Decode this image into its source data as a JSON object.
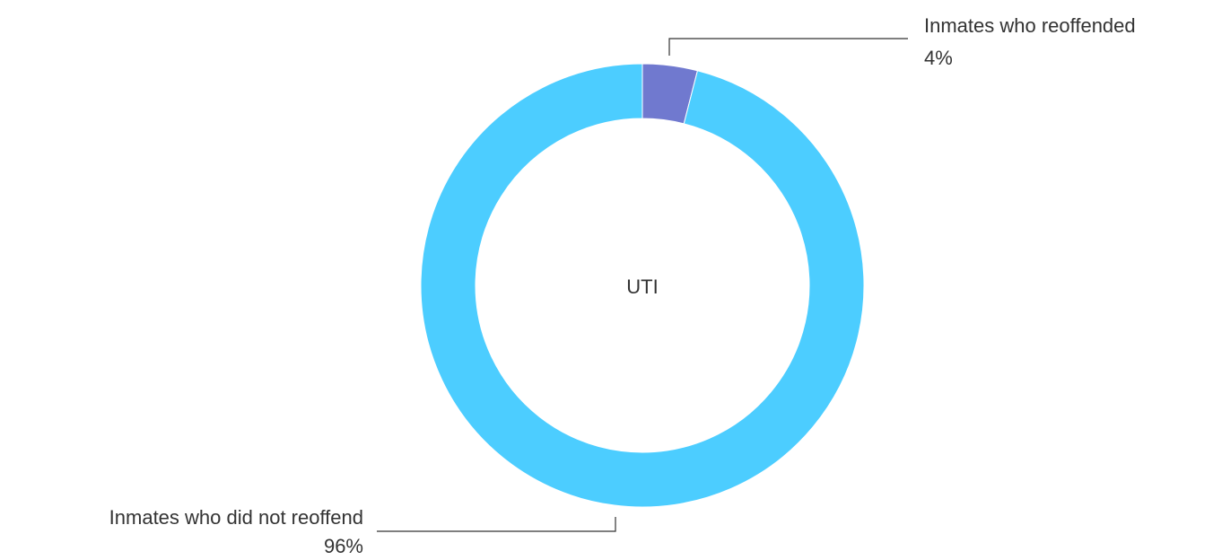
{
  "chart_data": {
    "type": "donut",
    "center_text": "UTI",
    "categories": [
      "Inmates who reoffended",
      "Inmates who did not reoffend"
    ],
    "values": [
      4,
      96
    ],
    "value_labels": [
      "4%",
      "96%"
    ],
    "colors": [
      "#7079cf",
      "#4ccdff"
    ]
  }
}
